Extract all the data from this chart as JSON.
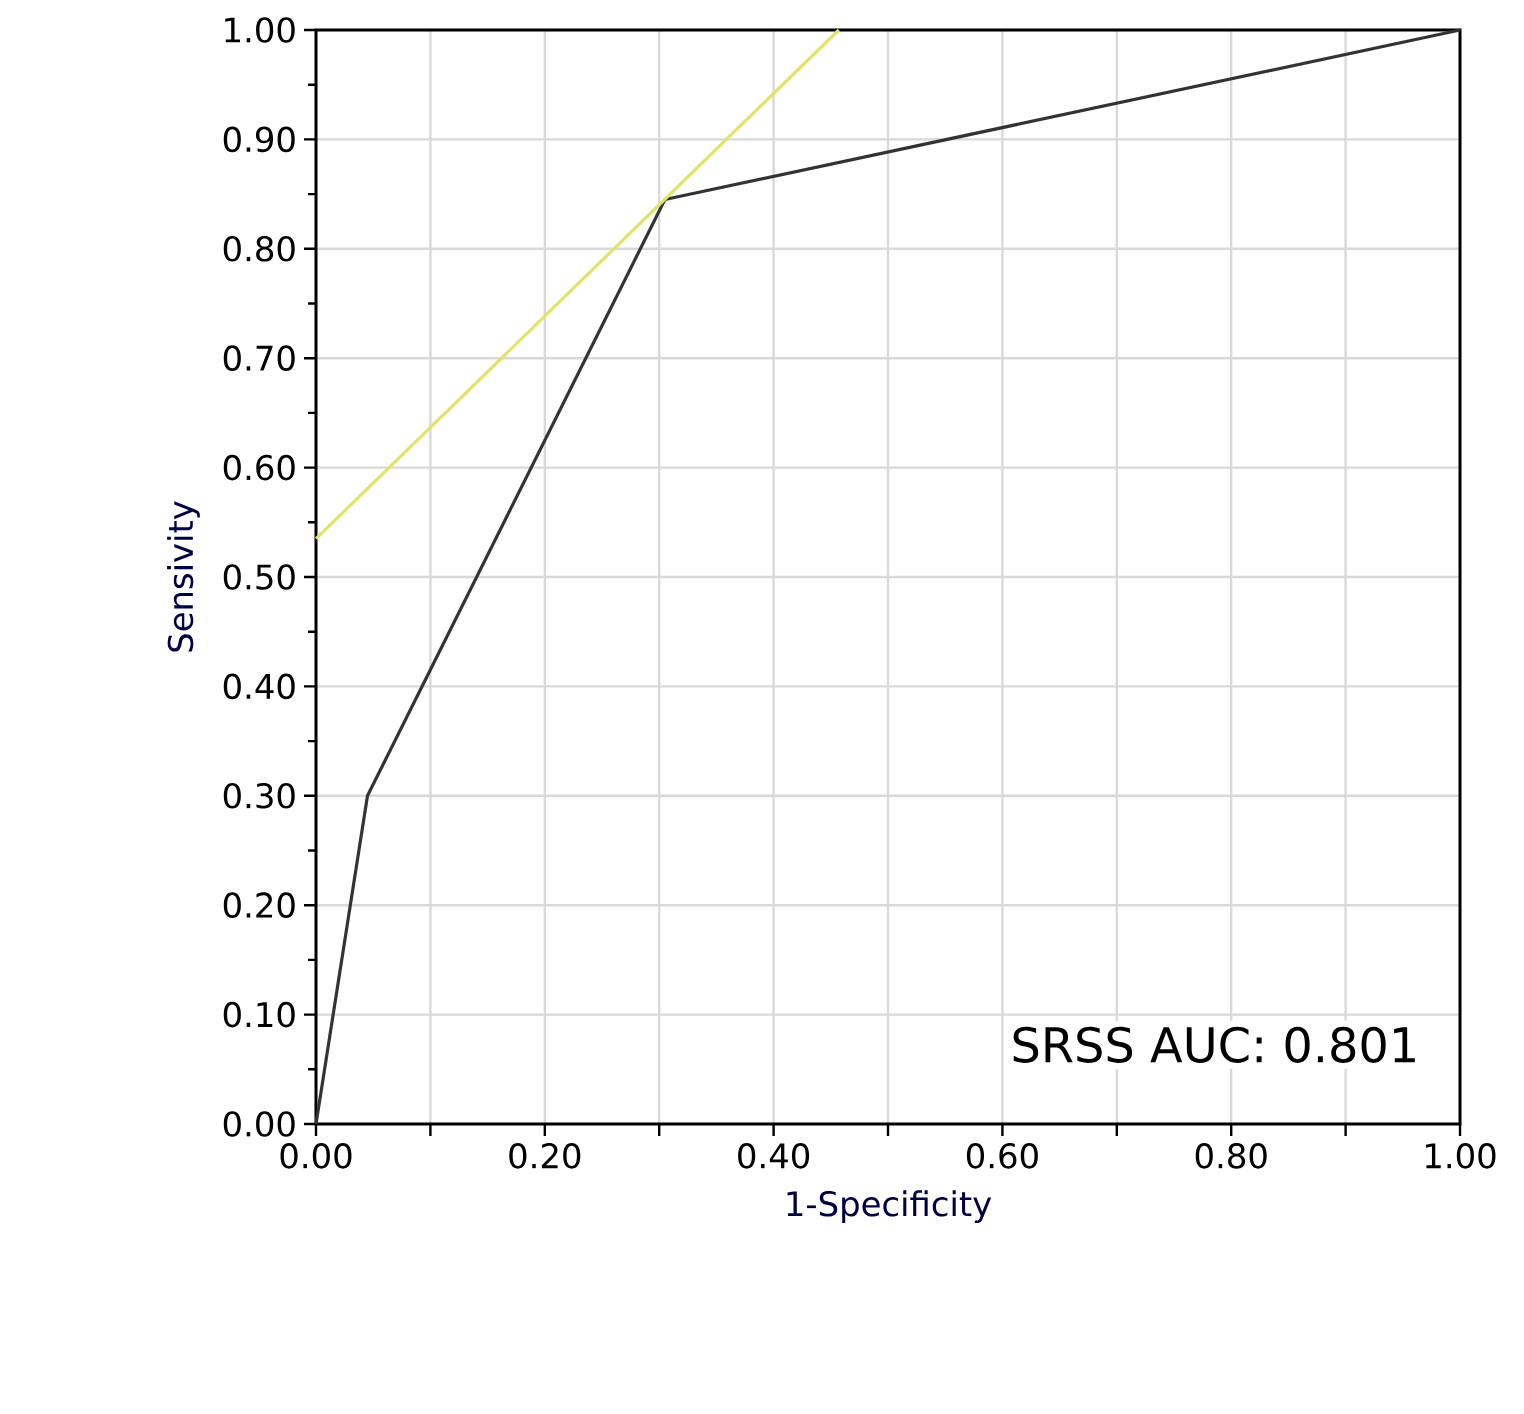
{
  "chart_data": {
    "type": "line",
    "xlabel": "1-Specificity",
    "ylabel": "Sensivity",
    "annotations": [
      "SRSS AUC: 0.801"
    ],
    "series": [
      {
        "color": "#333333",
        "x": [
          0,
          0.045,
          0.305,
          1.0
        ],
        "values": [
          0,
          0.3,
          0.845,
          1.0
        ]
      },
      {
        "color": "#e3e36a",
        "x": [
          0,
          0.457
        ],
        "values": [
          0.535,
          1.0
        ]
      }
    ],
    "xlim": [
      0,
      1
    ],
    "ylim": [
      0,
      1
    ],
    "xticks": [
      {
        "value": 0,
        "label": "0.00"
      },
      {
        "value": 0.1,
        "label": null
      },
      {
        "value": 0.2,
        "label": "0.20"
      },
      {
        "value": 0.3,
        "label": null
      },
      {
        "value": 0.4,
        "label": "0.40"
      },
      {
        "value": 0.5,
        "label": null
      },
      {
        "value": 0.6,
        "label": "0.60"
      },
      {
        "value": 0.7,
        "label": null
      },
      {
        "value": 0.8,
        "label": "0.80"
      },
      {
        "value": 0.9,
        "label": null
      },
      {
        "value": 1,
        "label": "1.00"
      }
    ],
    "yticks": [
      {
        "value": 0,
        "label": "0.00"
      },
      {
        "value": 0.1,
        "label": "0.10"
      },
      {
        "value": 0.2,
        "label": "0.20"
      },
      {
        "value": 0.3,
        "label": "0.30"
      },
      {
        "value": 0.4,
        "label": "0.40"
      },
      {
        "value": 0.5,
        "label": "0.50"
      },
      {
        "value": 0.6,
        "label": "0.60"
      },
      {
        "value": 0.7,
        "label": "0.70"
      },
      {
        "value": 0.8,
        "label": "0.80"
      },
      {
        "value": 0.9,
        "label": "0.90"
      },
      {
        "value": 1,
        "label": "1.00"
      }
    ],
    "grid": true,
    "marker": "none",
    "line_style": "solid"
  }
}
